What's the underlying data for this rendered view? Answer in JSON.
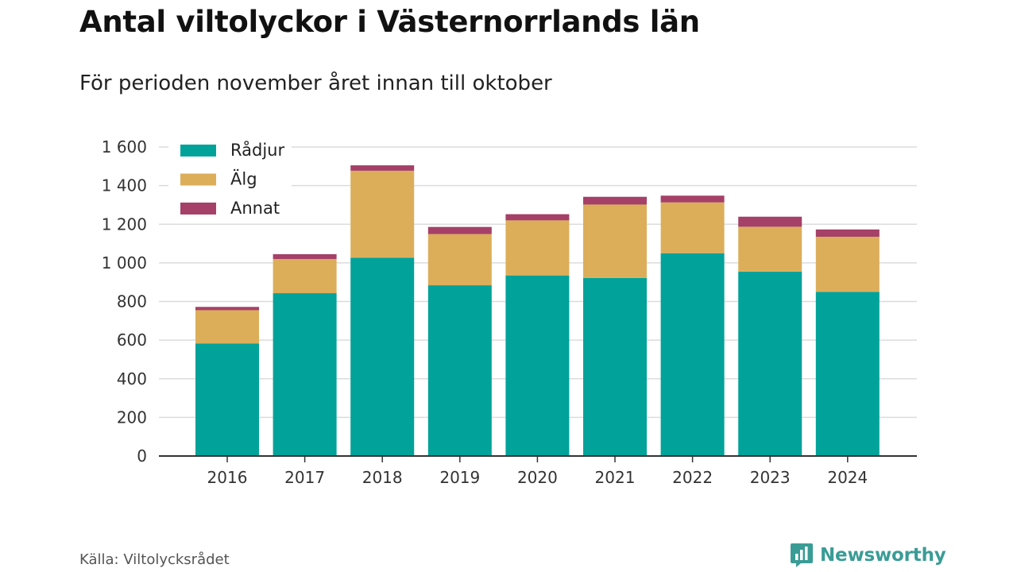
{
  "title": "Antal viltolyckor i Västernorrlands län",
  "subtitle": "För perioden november året innan till oktober",
  "source": "Källa: Viltolycksrådet",
  "brand": {
    "name": "Newsworthy",
    "color": "#3a9c96"
  },
  "chart_data": {
    "type": "bar",
    "stacked": true,
    "categories": [
      "2016",
      "2017",
      "2018",
      "2019",
      "2020",
      "2021",
      "2022",
      "2023",
      "2024"
    ],
    "series": [
      {
        "name": "Rådjur",
        "color": "#00a29a",
        "values": [
          583,
          843,
          1027,
          884,
          935,
          922,
          1050,
          955,
          850
        ]
      },
      {
        "name": "Älg",
        "color": "#dcae5a",
        "values": [
          172,
          177,
          450,
          265,
          285,
          380,
          263,
          232,
          285
        ]
      },
      {
        "name": "Annat",
        "color": "#a54068",
        "values": [
          17,
          25,
          28,
          37,
          32,
          40,
          35,
          52,
          38
        ]
      }
    ],
    "y_ticks": [
      "0",
      "200",
      "400",
      "600",
      "800",
      "1 000",
      "1 200",
      "1 400",
      "1 600"
    ],
    "ylim": [
      0,
      1600
    ],
    "grid": true,
    "legend_position": "top-left"
  }
}
